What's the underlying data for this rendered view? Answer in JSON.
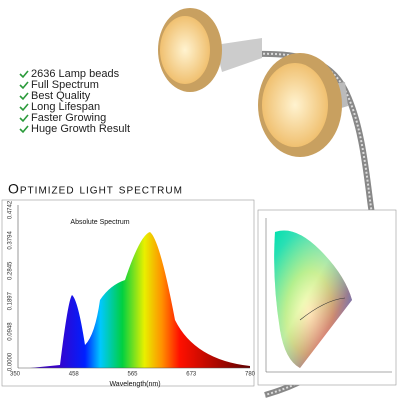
{
  "features": [
    "2636 Lamp beads",
    "Full Spectrum",
    "Best Quality",
    "Long Lifespan",
    "Faster Growing",
    "Huge Growth Result"
  ],
  "banner": "Optimized light spectrum",
  "spectrum": {
    "title": "Absolute Spectrum",
    "x_label": "Wavelength(nm)",
    "x_ticks": [
      "350",
      "458",
      "565",
      "673",
      "780"
    ],
    "y_ticks": [
      "0.0000",
      "0.0948",
      "0.1897",
      "0.2845",
      "0.3794",
      "0.4742"
    ]
  }
}
